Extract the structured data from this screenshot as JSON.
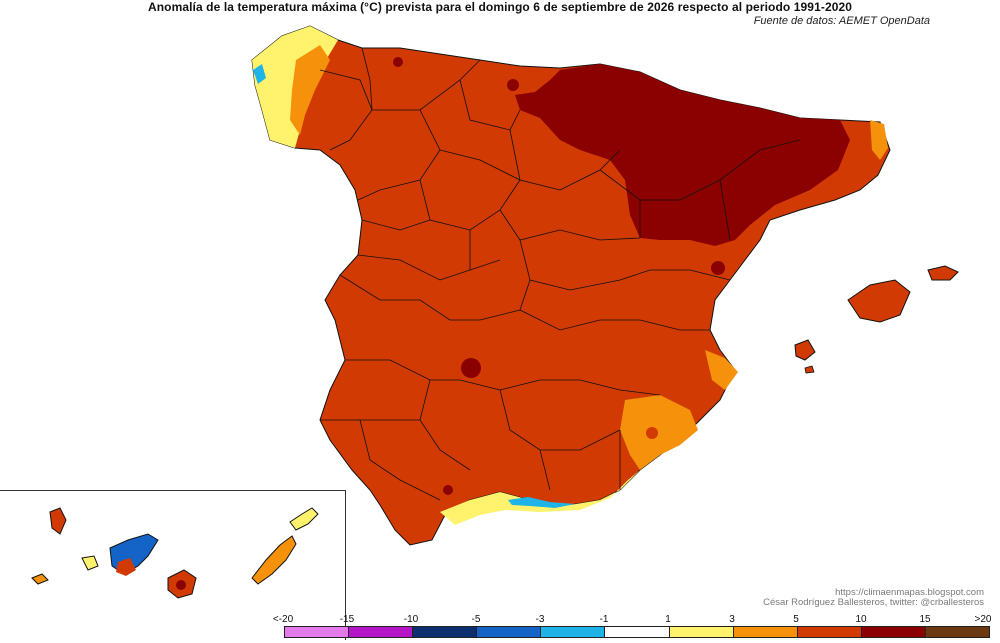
{
  "header": {
    "title": "Anomalía de la temperatura máxima (°C) prevista para el domingo 6 de septiembre de 2026 respecto al periodo 1991-2020",
    "source": "Fuente de datos: AEMET OpenData"
  },
  "credit": {
    "line1": "https://climaenmapas.blogspot.com",
    "line2": "César Rodríguez Ballesteros, twitter: @crballesteros"
  },
  "legend": {
    "labels": [
      "<-20",
      "-15",
      "-10",
      "-5",
      "-3",
      "-1",
      "1",
      "3",
      "5",
      "10",
      "15",
      ">20"
    ],
    "colors": [
      "#e27be9",
      "#b515c8",
      "#0b2f6e",
      "#1464c8",
      "#1eb4e8",
      "#ffffff",
      "#fff36e",
      "#f5910a",
      "#d23a04",
      "#8b0000",
      "#6b3a12"
    ]
  }
}
